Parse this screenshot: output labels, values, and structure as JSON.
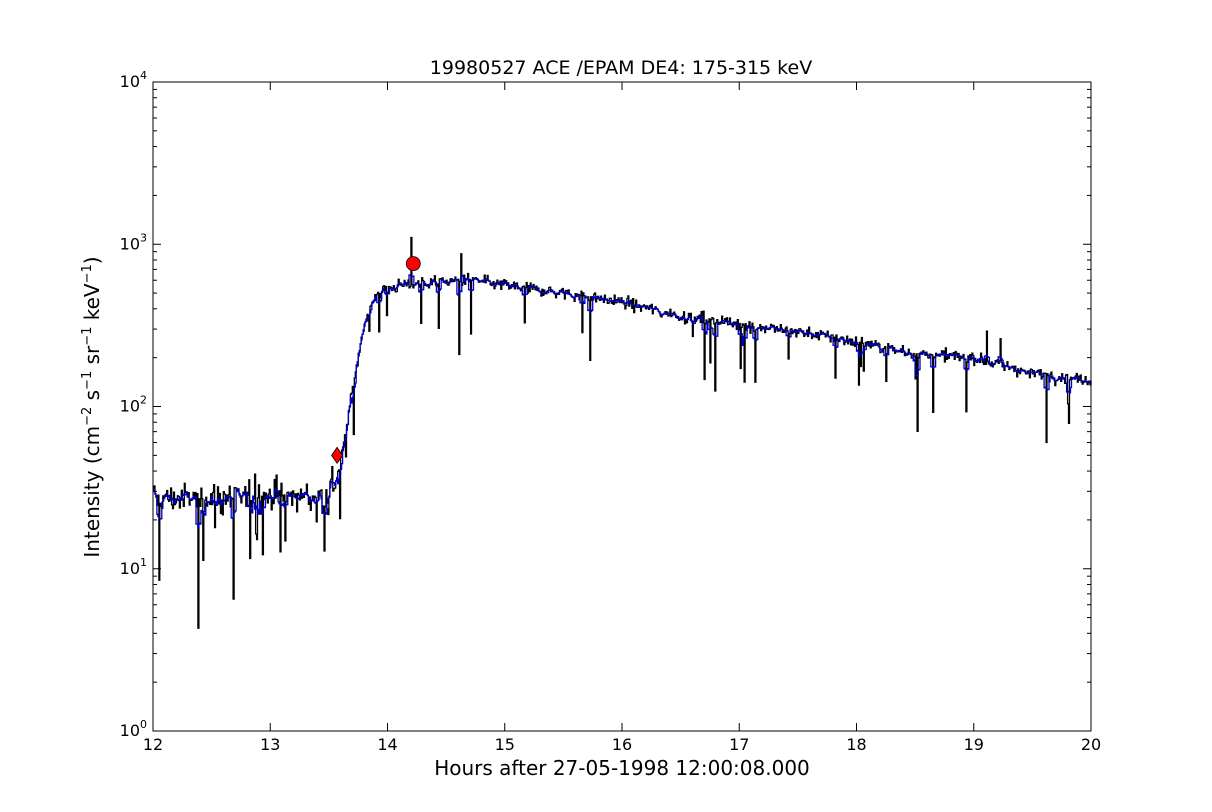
{
  "chart_data": {
    "type": "line",
    "title": "19980527 ACE /EPAM DE4: 175-315 keV",
    "xlabel": "Hours after 27-05-1998 12:00:08.000",
    "ylabel": "Intensity (cm⁻² s⁻¹ sr⁻¹ keV⁻¹)",
    "ylabel_parts": {
      "prefix": "Intensity (cm",
      "sup1": "−2",
      "mid1": " s",
      "sup2": "−1",
      "mid2": " sr",
      "sup3": "−1",
      "mid3": " keV",
      "sup4": "−1",
      "suffix": ")"
    },
    "xlim": [
      12,
      20
    ],
    "ylim": [
      1,
      10000
    ],
    "yscale": "log",
    "grid": false,
    "x_ticks": [
      12,
      13,
      14,
      15,
      16,
      17,
      18,
      19,
      20
    ],
    "x_tick_labels": [
      "12",
      "13",
      "14",
      "15",
      "16",
      "17",
      "18",
      "19",
      "20"
    ],
    "y_ticks": [
      1,
      10,
      100,
      1000,
      10000
    ],
    "y_tick_labels": [
      {
        "base": "10",
        "exp": "0"
      },
      {
        "base": "10",
        "exp": "1"
      },
      {
        "base": "10",
        "exp": "2"
      },
      {
        "base": "10",
        "exp": "3"
      },
      {
        "base": "10",
        "exp": "4"
      }
    ],
    "series_style": [
      {
        "color": "#000000",
        "kind": "raw intensity"
      },
      {
        "color": "#0000cc",
        "kind": "smoothed intensity"
      }
    ],
    "profile_key_points": {
      "x": [
        12.0,
        13.45,
        13.55,
        13.62,
        13.7,
        13.8,
        13.9,
        14.0,
        14.3,
        14.7,
        15.0,
        15.5,
        16.0,
        16.5,
        17.0,
        17.5,
        18.0,
        18.5,
        19.0,
        19.5,
        20.0
      ],
      "y": [
        27,
        28,
        33,
        55,
        130,
        330,
        480,
        540,
        580,
        600,
        560,
        500,
        440,
        360,
        320,
        290,
        250,
        210,
        200,
        160,
        145
      ]
    },
    "markers": [
      {
        "name": "onset",
        "shape": "diamond",
        "color": "#ff0000",
        "x": 13.57,
        "y": 50
      },
      {
        "name": "peak",
        "shape": "circle",
        "color": "#ff0000",
        "x": 14.22,
        "y": 760
      }
    ]
  }
}
